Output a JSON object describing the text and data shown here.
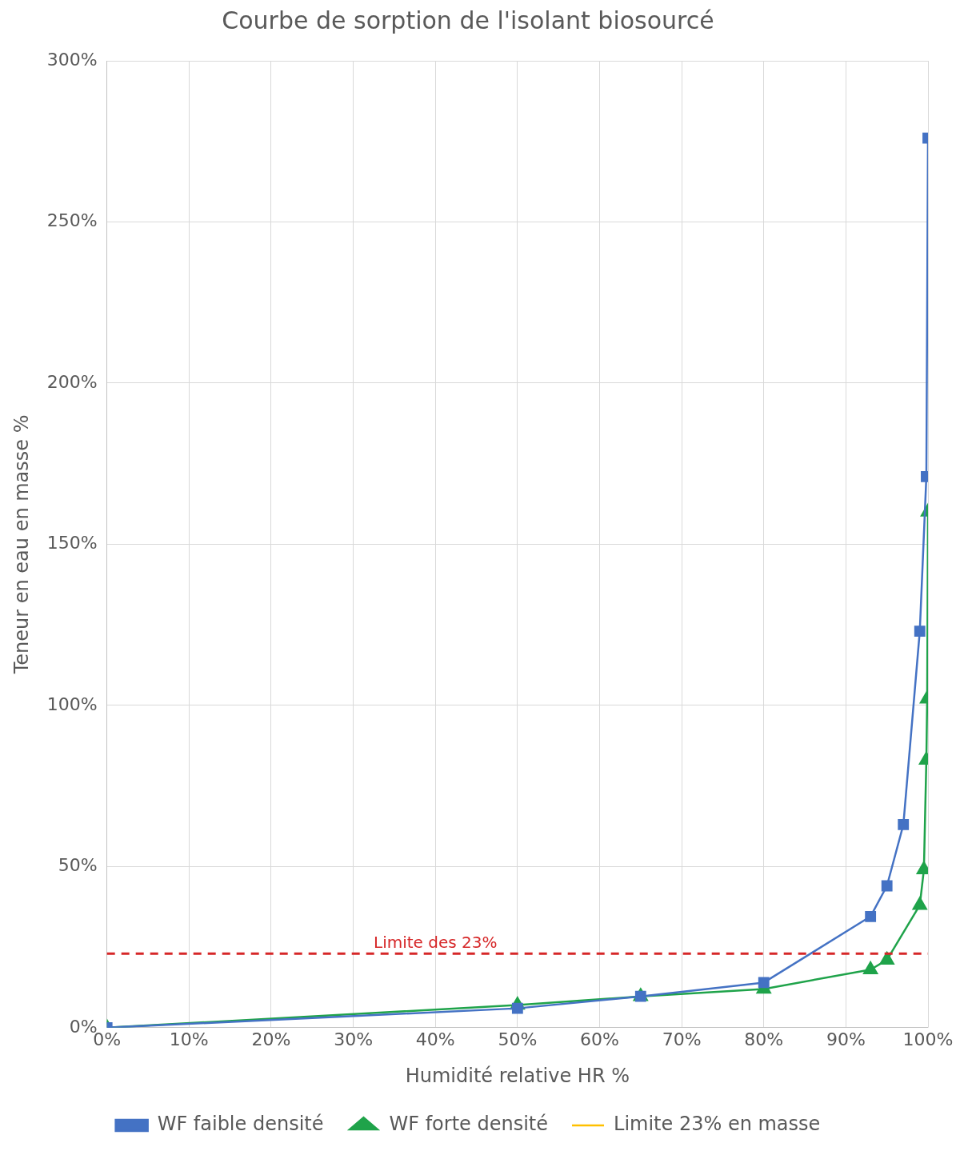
{
  "chart_data": {
    "type": "line",
    "title": "Courbe de sorption de l'isolant biosourcé",
    "xlabel": "Humidité relative HR %",
    "ylabel": "Teneur en eau en masse %",
    "series": [
      {
        "name": "WF faible densité",
        "color": "#4472c4",
        "marker": "square",
        "x": [
          0,
          50,
          65,
          80,
          93,
          95,
          97,
          99,
          99.8,
          100
        ],
        "values": [
          0,
          6,
          9.7,
          14,
          34.5,
          44,
          63,
          123,
          171,
          276
        ]
      },
      {
        "name": "WF forte densité",
        "color": "#1fa34a",
        "marker": "triangle",
        "x": [
          0,
          50,
          65,
          80,
          93,
          95,
          99,
          99.5,
          99.8,
          99.9,
          100
        ],
        "values": [
          0,
          7,
          9.7,
          12,
          18,
          21,
          38,
          49,
          83,
          102,
          160
        ]
      },
      {
        "name": "Limite 23% en masse",
        "color": "#ffc000",
        "marker": "none"
      }
    ],
    "xlim": [
      0,
      100
    ],
    "xticks": [
      {
        "value": 0,
        "label": "0%"
      },
      {
        "value": 10,
        "label": "10%"
      },
      {
        "value": 20,
        "label": "20%"
      },
      {
        "value": 30,
        "label": "30%"
      },
      {
        "value": 40,
        "label": "40%"
      },
      {
        "value": 50,
        "label": "50%"
      },
      {
        "value": 60,
        "label": "60%"
      },
      {
        "value": 70,
        "label": "70%"
      },
      {
        "value": 80,
        "label": "80%"
      },
      {
        "value": 90,
        "label": "90%"
      },
      {
        "value": 100,
        "label": "100%"
      }
    ],
    "ylim": [
      0,
      300
    ],
    "yticks": [
      {
        "value": 0,
        "label": "0%"
      },
      {
        "value": 50,
        "label": "50%"
      },
      {
        "value": 100,
        "label": "100%"
      },
      {
        "value": 150,
        "label": "150%"
      },
      {
        "value": 200,
        "label": "200%"
      },
      {
        "value": 250,
        "label": "250%"
      },
      {
        "value": 300,
        "label": "300%"
      }
    ],
    "ref_lines": [
      {
        "axis": "y",
        "value": 23,
        "label": "Limite des 23%",
        "color": "#d62728",
        "line_style": "dashed"
      }
    ],
    "grid": true,
    "legend": "bottom"
  }
}
